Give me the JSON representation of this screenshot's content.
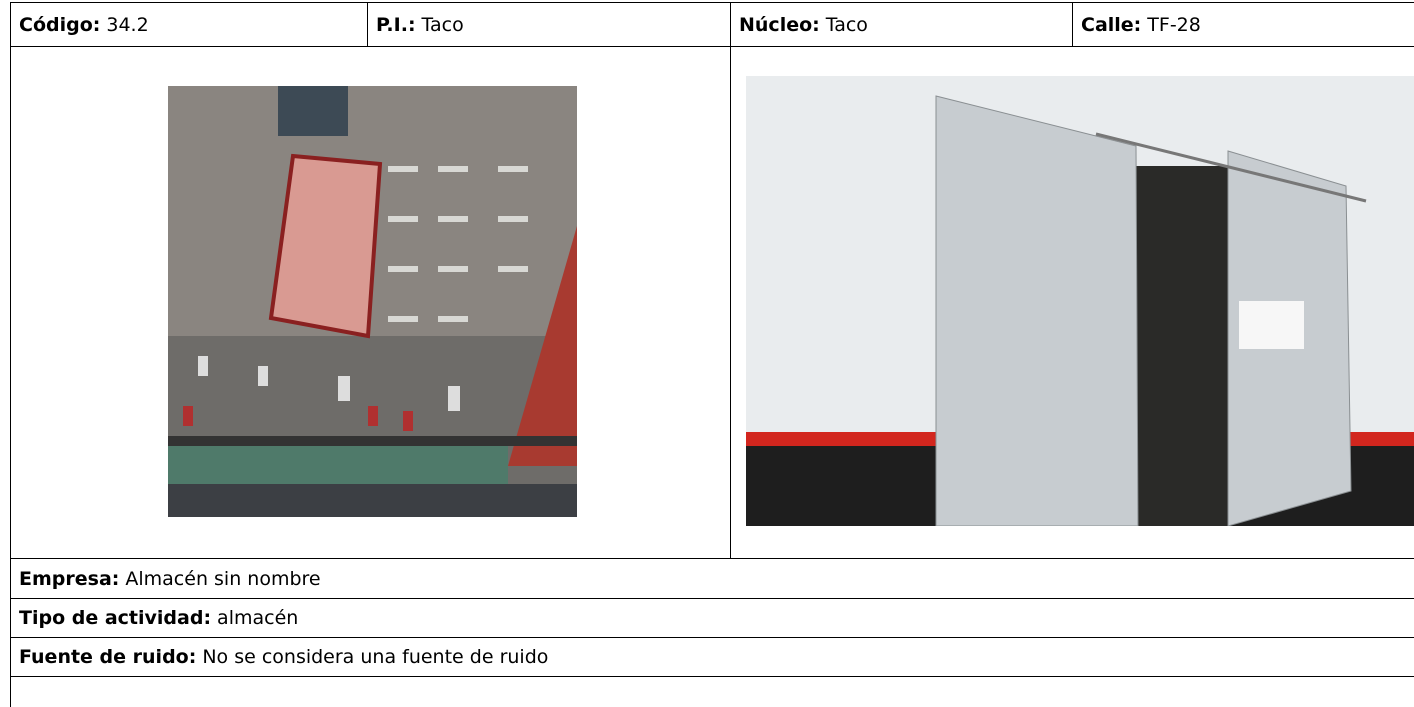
{
  "header": [
    {
      "label": "Código:",
      "value": "34.2"
    },
    {
      "label": "P.I.:",
      "value": "Taco"
    },
    {
      "label": "Núcleo:",
      "value": "Taco"
    },
    {
      "label": "Calle:",
      "value": "TF-28"
    }
  ],
  "rows": [
    {
      "label": "Empresa:",
      "value": "Almacén sin nombre"
    },
    {
      "label": "Tipo de actividad:",
      "value": "almacén"
    },
    {
      "label": "Fuente de ruido:",
      "value": "No se considera una fuente de ruido"
    }
  ]
}
